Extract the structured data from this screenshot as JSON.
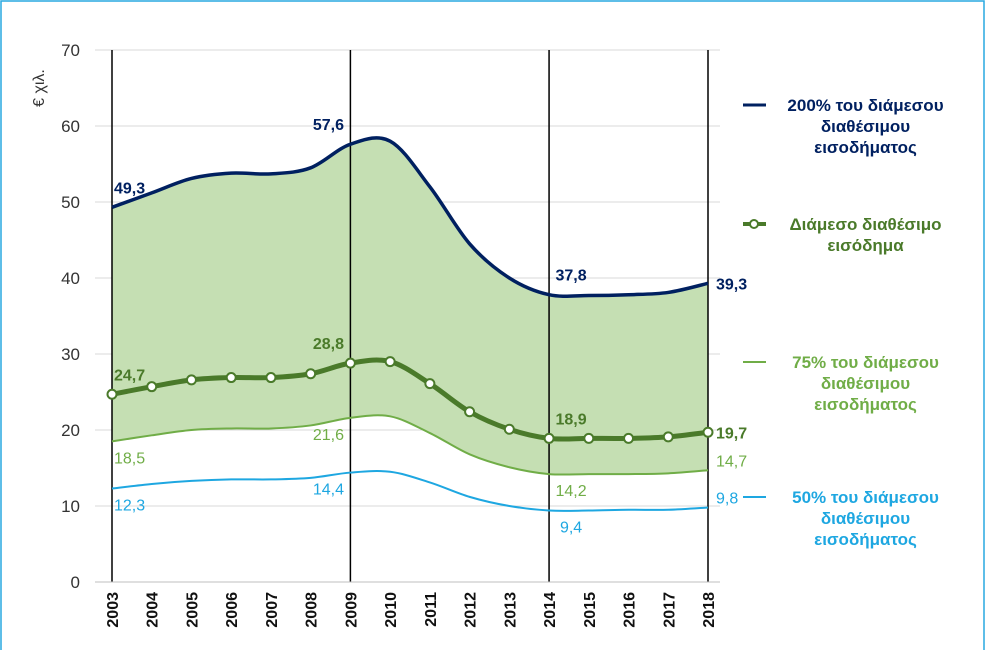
{
  "chart_data": {
    "type": "line",
    "y_label": "€ χιλ.",
    "categories": [
      "2003",
      "2004",
      "2005",
      "2006",
      "2007",
      "2008",
      "2009",
      "2010",
      "2011",
      "2012",
      "2013",
      "2014",
      "2015",
      "2016",
      "2017",
      "2018"
    ],
    "ylim": [
      0,
      70
    ],
    "yticks": [
      0,
      10,
      20,
      30,
      40,
      50,
      60,
      70
    ],
    "grid": true,
    "band": {
      "series": [
        0,
        2
      ],
      "color": "#c5dfb3"
    },
    "series": [
      {
        "name": "200% του διάμεσου διαθέσιμου εισοδήματος",
        "color": "#002060",
        "bold_labels": true,
        "values": [
          49.3,
          51.2,
          53.1,
          53.8,
          53.7,
          54.5,
          57.6,
          58.0,
          52.0,
          44.5,
          40.0,
          37.8,
          37.7,
          37.8,
          38.1,
          39.3
        ],
        "value_labels": [
          "49,3",
          null,
          null,
          null,
          null,
          null,
          "57,6",
          null,
          null,
          null,
          null,
          "37,8",
          null,
          null,
          null,
          "39,3"
        ]
      },
      {
        "name": "Διάμεσο διαθέσιμο εισόδημα",
        "color": "#4a7a2a",
        "markers": true,
        "bold_labels": true,
        "values": [
          24.7,
          25.7,
          26.6,
          26.9,
          26.9,
          27.4,
          28.8,
          29.0,
          26.1,
          22.4,
          20.1,
          18.9,
          18.9,
          18.9,
          19.1,
          19.7
        ],
        "value_labels": [
          "24,7",
          null,
          null,
          null,
          null,
          null,
          "28,8",
          null,
          null,
          null,
          null,
          "18,9",
          null,
          null,
          null,
          "19,7"
        ]
      },
      {
        "name": "75% του διάμεσου διαθέσιμου εισοδήματος",
        "color": "#70ad47",
        "values": [
          18.5,
          19.3,
          20.0,
          20.2,
          20.2,
          20.6,
          21.6,
          21.8,
          19.6,
          16.8,
          15.1,
          14.2,
          14.2,
          14.2,
          14.3,
          14.7
        ],
        "value_labels": [
          "18,5",
          null,
          null,
          null,
          null,
          null,
          "21,6",
          null,
          null,
          null,
          null,
          "14,2",
          null,
          null,
          null,
          "14,7"
        ]
      },
      {
        "name": "50% του διάμεσου διαθέσιμου εισοδήματος",
        "color": "#1ea7e1",
        "values": [
          12.3,
          12.9,
          13.3,
          13.5,
          13.5,
          13.7,
          14.4,
          14.5,
          13.1,
          11.2,
          10.0,
          9.4,
          9.4,
          9.5,
          9.5,
          9.8
        ],
        "value_labels": [
          "12,3",
          null,
          null,
          null,
          null,
          null,
          "14,4",
          null,
          null,
          null,
          null,
          "9,4",
          null,
          null,
          null,
          "9,8"
        ]
      }
    ]
  }
}
